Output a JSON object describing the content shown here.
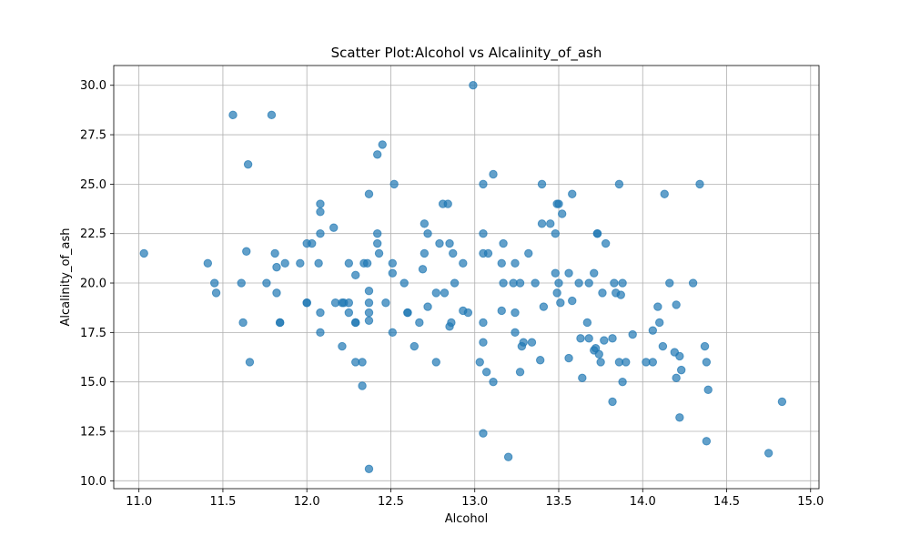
{
  "chart_data": {
    "type": "scatter",
    "title": "Scatter Plot:Alcohol vs Alcalinity_of_ash",
    "xlabel": "Alcohol",
    "ylabel": "Alcalinity_of_ash",
    "xlim": [
      10.85,
      15.05
    ],
    "ylim": [
      9.6,
      31.0
    ],
    "xticks": [
      11.0,
      11.5,
      12.0,
      12.5,
      13.0,
      13.5,
      14.0,
      14.5,
      15.0
    ],
    "xtick_labels": [
      "11.0",
      "11.5",
      "12.0",
      "12.5",
      "13.0",
      "13.5",
      "14.0",
      "14.5",
      "15.0"
    ],
    "yticks": [
      10.0,
      12.5,
      15.0,
      17.5,
      20.0,
      22.5,
      25.0,
      27.5,
      30.0
    ],
    "ytick_labels": [
      "10.0",
      "12.5",
      "15.0",
      "17.5",
      "20.0",
      "22.5",
      "25.0",
      "27.5",
      "30.0"
    ],
    "grid": true,
    "color": "#1f77b4",
    "points": [
      [
        11.03,
        21.5
      ],
      [
        11.41,
        21.0
      ],
      [
        11.45,
        20.0
      ],
      [
        11.46,
        19.5
      ],
      [
        11.56,
        28.5
      ],
      [
        11.61,
        20.0
      ],
      [
        11.62,
        18.0
      ],
      [
        11.64,
        21.6
      ],
      [
        11.65,
        26.0
      ],
      [
        11.66,
        16.0
      ],
      [
        11.76,
        20.0
      ],
      [
        11.79,
        28.5
      ],
      [
        11.81,
        21.5
      ],
      [
        11.82,
        20.8
      ],
      [
        11.82,
        19.5
      ],
      [
        11.84,
        18.0
      ],
      [
        11.84,
        18.0
      ],
      [
        11.87,
        21.0
      ],
      [
        11.96,
        21.0
      ],
      [
        12.0,
        22.0
      ],
      [
        12.0,
        19.0
      ],
      [
        12.0,
        19.0
      ],
      [
        12.03,
        22.0
      ],
      [
        12.07,
        21.0
      ],
      [
        12.08,
        24.0
      ],
      [
        12.08,
        23.6
      ],
      [
        12.08,
        22.5
      ],
      [
        12.08,
        18.5
      ],
      [
        12.08,
        17.5
      ],
      [
        12.16,
        22.8
      ],
      [
        12.17,
        19.0
      ],
      [
        12.21,
        19.0
      ],
      [
        12.21,
        16.8
      ],
      [
        12.22,
        19.0
      ],
      [
        12.25,
        21.0
      ],
      [
        12.25,
        19.0
      ],
      [
        12.25,
        18.5
      ],
      [
        12.29,
        20.4
      ],
      [
        12.29,
        18.0
      ],
      [
        12.29,
        18.0
      ],
      [
        12.29,
        16.0
      ],
      [
        12.33,
        16.0
      ],
      [
        12.33,
        14.8
      ],
      [
        12.34,
        21.0
      ],
      [
        12.36,
        21.0
      ],
      [
        12.37,
        24.5
      ],
      [
        12.37,
        19.6
      ],
      [
        12.37,
        19.0
      ],
      [
        12.37,
        18.5
      ],
      [
        12.37,
        18.1
      ],
      [
        12.37,
        10.6
      ],
      [
        12.42,
        26.5
      ],
      [
        12.42,
        22.5
      ],
      [
        12.42,
        22.0
      ],
      [
        12.43,
        21.5
      ],
      [
        12.45,
        27.0
      ],
      [
        12.47,
        19.0
      ],
      [
        12.51,
        21.0
      ],
      [
        12.51,
        20.5
      ],
      [
        12.51,
        17.5
      ],
      [
        12.52,
        25.0
      ],
      [
        12.58,
        20.0
      ],
      [
        12.6,
        18.5
      ],
      [
        12.6,
        18.5
      ],
      [
        12.64,
        16.8
      ],
      [
        12.67,
        18.0
      ],
      [
        12.69,
        20.7
      ],
      [
        12.7,
        23.0
      ],
      [
        12.7,
        21.5
      ],
      [
        12.72,
        22.5
      ],
      [
        12.72,
        18.8
      ],
      [
        12.77,
        19.5
      ],
      [
        12.77,
        16.0
      ],
      [
        12.79,
        22.0
      ],
      [
        12.81,
        24.0
      ],
      [
        12.82,
        19.5
      ],
      [
        12.84,
        24.0
      ],
      [
        12.85,
        22.0
      ],
      [
        12.85,
        17.8
      ],
      [
        12.86,
        18.0
      ],
      [
        12.87,
        21.5
      ],
      [
        12.88,
        20.0
      ],
      [
        12.93,
        21.0
      ],
      [
        12.93,
        18.6
      ],
      [
        12.96,
        18.5
      ],
      [
        12.99,
        30.0
      ],
      [
        13.03,
        16.0
      ],
      [
        13.05,
        25.0
      ],
      [
        13.05,
        22.5
      ],
      [
        13.05,
        21.5
      ],
      [
        13.05,
        18.0
      ],
      [
        13.05,
        17.0
      ],
      [
        13.05,
        12.4
      ],
      [
        13.07,
        15.5
      ],
      [
        13.08,
        21.5
      ],
      [
        13.11,
        25.5
      ],
      [
        13.11,
        15.0
      ],
      [
        13.16,
        21.0
      ],
      [
        13.17,
        22.0
      ],
      [
        13.17,
        20.0
      ],
      [
        13.16,
        18.6
      ],
      [
        13.2,
        11.2
      ],
      [
        13.23,
        20.0
      ],
      [
        13.24,
        21.0
      ],
      [
        13.24,
        18.5
      ],
      [
        13.24,
        17.5
      ],
      [
        13.27,
        20.0
      ],
      [
        13.27,
        15.5
      ],
      [
        13.28,
        16.8
      ],
      [
        13.29,
        17.0
      ],
      [
        13.32,
        21.5
      ],
      [
        13.34,
        17.0
      ],
      [
        13.36,
        20.0
      ],
      [
        13.39,
        16.1
      ],
      [
        13.4,
        25.0
      ],
      [
        13.4,
        23.0
      ],
      [
        13.41,
        18.8
      ],
      [
        13.45,
        23.0
      ],
      [
        13.48,
        22.5
      ],
      [
        13.48,
        20.5
      ],
      [
        13.49,
        24.0
      ],
      [
        13.49,
        19.5
      ],
      [
        13.5,
        24.0
      ],
      [
        13.5,
        20.0
      ],
      [
        13.51,
        19.0
      ],
      [
        13.52,
        23.5
      ],
      [
        13.56,
        20.5
      ],
      [
        13.56,
        16.2
      ],
      [
        13.58,
        24.5
      ],
      [
        13.58,
        19.1
      ],
      [
        13.62,
        20.0
      ],
      [
        13.63,
        17.2
      ],
      [
        13.64,
        15.2
      ],
      [
        13.67,
        18.0
      ],
      [
        13.68,
        17.2
      ],
      [
        13.68,
        20.0
      ],
      [
        13.71,
        20.5
      ],
      [
        13.71,
        16.6
      ],
      [
        13.72,
        16.7
      ],
      [
        13.73,
        22.5
      ],
      [
        13.73,
        22.5
      ],
      [
        13.74,
        16.4
      ],
      [
        13.75,
        16.0
      ],
      [
        13.76,
        19.5
      ],
      [
        13.77,
        17.1
      ],
      [
        13.78,
        22.0
      ],
      [
        13.82,
        17.2
      ],
      [
        13.82,
        14.0
      ],
      [
        13.83,
        20.0
      ],
      [
        13.84,
        19.5
      ],
      [
        13.86,
        25.0
      ],
      [
        13.86,
        16.0
      ],
      [
        13.87,
        19.4
      ],
      [
        13.88,
        20.0
      ],
      [
        13.88,
        15.0
      ],
      [
        13.9,
        16.0
      ],
      [
        13.94,
        17.4
      ],
      [
        14.02,
        16.0
      ],
      [
        14.06,
        17.6
      ],
      [
        14.06,
        16.0
      ],
      [
        14.09,
        18.8
      ],
      [
        14.1,
        18.0
      ],
      [
        14.12,
        16.8
      ],
      [
        14.13,
        24.5
      ],
      [
        14.16,
        20.0
      ],
      [
        14.19,
        16.5
      ],
      [
        14.2,
        18.9
      ],
      [
        14.2,
        15.2
      ],
      [
        14.22,
        16.3
      ],
      [
        14.22,
        13.2
      ],
      [
        14.23,
        15.6
      ],
      [
        14.3,
        20.0
      ],
      [
        14.34,
        25.0
      ],
      [
        14.37,
        16.8
      ],
      [
        14.38,
        16.0
      ],
      [
        14.38,
        12.0
      ],
      [
        14.39,
        14.6
      ],
      [
        14.75,
        11.4
      ],
      [
        14.83,
        14.0
      ]
    ]
  }
}
